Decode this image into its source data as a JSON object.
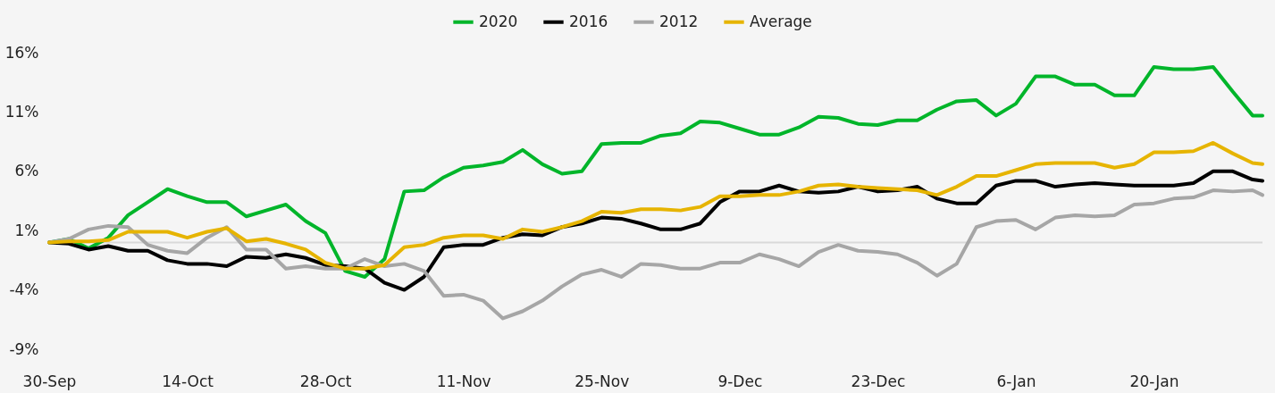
{
  "chart_data": {
    "type": "line",
    "x": [
      "2020-09-30",
      "2020-10-02",
      "2020-10-04",
      "2020-10-06",
      "2020-10-08",
      "2020-10-10",
      "2020-10-12",
      "2020-10-14",
      "2020-10-16",
      "2020-10-18",
      "2020-10-20",
      "2020-10-22",
      "2020-10-24",
      "2020-10-26",
      "2020-10-28",
      "2020-10-30",
      "2020-11-01",
      "2020-11-03",
      "2020-11-05",
      "2020-11-07",
      "2020-11-09",
      "2020-11-11",
      "2020-11-13",
      "2020-11-15",
      "2020-11-17",
      "2020-11-19",
      "2020-11-21",
      "2020-11-23",
      "2020-11-25",
      "2020-11-27",
      "2020-11-29",
      "2020-12-01",
      "2020-12-03",
      "2020-12-05",
      "2020-12-07",
      "2020-12-09",
      "2020-12-11",
      "2020-12-13",
      "2020-12-15",
      "2020-12-17",
      "2020-12-19",
      "2020-12-21",
      "2020-12-23",
      "2020-12-25",
      "2020-12-27",
      "2020-12-29",
      "2020-12-31",
      "2021-01-02",
      "2021-01-04",
      "2021-01-06",
      "2021-01-08",
      "2021-01-10",
      "2021-01-12",
      "2021-01-14",
      "2021-01-16",
      "2021-01-18",
      "2021-01-20",
      "2021-01-22",
      "2021-01-24",
      "2021-01-26",
      "2021-01-28",
      "2021-01-30",
      "2021-01-31"
    ],
    "series": [
      {
        "name": "2020",
        "color": "#00b52a",
        "values": [
          0,
          0.3,
          -0.5,
          0.4,
          2.3,
          3.4,
          4.5,
          3.9,
          3.4,
          3.4,
          2.2,
          2.7,
          3.2,
          1.8,
          0.8,
          -2.4,
          -2.9,
          -1.4,
          4.3,
          4.4,
          5.5,
          6.3,
          6.5,
          6.8,
          7.8,
          6.6,
          5.8,
          6.0,
          8.3,
          8.4,
          8.4,
          9.0,
          9.2,
          10.2,
          10.1,
          9.6,
          9.1,
          9.1,
          9.7,
          10.6,
          10.5,
          10.0,
          9.9,
          10.3,
          10.3,
          11.2,
          11.9,
          12.0,
          10.7,
          11.7,
          14.0,
          14.0,
          13.3,
          13.3,
          12.4,
          12.4,
          14.8,
          14.6,
          14.6,
          14.8,
          12.7,
          10.7,
          10.7
        ]
      },
      {
        "name": "2016",
        "color": "#000000",
        "values": [
          0,
          -0.1,
          -0.6,
          -0.3,
          -0.7,
          -0.7,
          -1.5,
          -1.8,
          -1.8,
          -2.0,
          -1.2,
          -1.3,
          -1.0,
          -1.3,
          -1.9,
          -2.0,
          -2.2,
          -3.4,
          -4.0,
          -2.9,
          -0.4,
          -0.2,
          -0.2,
          0.4,
          0.7,
          0.6,
          1.3,
          1.6,
          2.1,
          2.0,
          1.6,
          1.1,
          1.1,
          1.6,
          3.4,
          4.3,
          4.3,
          4.8,
          4.3,
          4.2,
          4.3,
          4.7,
          4.3,
          4.4,
          4.7,
          3.7,
          3.3,
          3.3,
          4.8,
          5.2,
          5.2,
          4.7,
          4.9,
          5.0,
          4.9,
          4.8,
          4.8,
          4.8,
          5.0,
          6.0,
          6.0,
          5.3,
          5.2
        ]
      },
      {
        "name": "2012",
        "color": "#a6a6a6",
        "values": [
          0,
          0.3,
          1.1,
          1.4,
          1.3,
          -0.2,
          -0.7,
          -0.9,
          0.4,
          1.3,
          -0.6,
          -0.6,
          -2.2,
          -2.0,
          -2.2,
          -2.2,
          -1.4,
          -2.0,
          -1.8,
          -2.4,
          -4.5,
          -4.4,
          -4.9,
          -6.4,
          -5.8,
          -4.9,
          -3.7,
          -2.7,
          -2.3,
          -2.9,
          -1.8,
          -1.9,
          -2.2,
          -2.2,
          -1.7,
          -1.7,
          -1.0,
          -1.4,
          -2.0,
          -0.8,
          -0.2,
          -0.7,
          -0.8,
          -1.0,
          -1.7,
          -2.8,
          -1.8,
          1.3,
          1.8,
          1.9,
          1.1,
          2.1,
          2.3,
          2.2,
          2.3,
          3.2,
          3.3,
          3.7,
          3.8,
          4.4,
          4.3,
          4.4,
          4.0
        ]
      },
      {
        "name": "Average",
        "color": "#e6b400",
        "values": [
          0,
          0.1,
          0.1,
          0.2,
          0.9,
          0.9,
          0.9,
          0.4,
          0.9,
          1.2,
          0.1,
          0.3,
          -0.1,
          -0.6,
          -1.7,
          -2.2,
          -2.2,
          -1.9,
          -0.4,
          -0.2,
          0.4,
          0.6,
          0.6,
          0.3,
          1.1,
          0.9,
          1.3,
          1.8,
          2.6,
          2.5,
          2.8,
          2.8,
          2.7,
          3.0,
          3.9,
          3.9,
          4.0,
          4.0,
          4.3,
          4.8,
          4.9,
          4.7,
          4.6,
          4.5,
          4.4,
          4.0,
          4.7,
          5.6,
          5.6,
          6.1,
          6.6,
          6.7,
          6.7,
          6.7,
          6.3,
          6.6,
          7.6,
          7.6,
          7.7,
          8.4,
          7.5,
          6.7,
          6.6
        ]
      }
    ],
    "xlim": [
      "2020-09-30",
      "2021-01-31"
    ],
    "xticks": [
      {
        "value": "2020-09-30",
        "label": "30-Sep"
      },
      {
        "value": "2020-10-14",
        "label": "14-Oct"
      },
      {
        "value": "2020-10-28",
        "label": "28-Oct"
      },
      {
        "value": "2020-11-11",
        "label": "11-Nov"
      },
      {
        "value": "2020-11-25",
        "label": "25-Nov"
      },
      {
        "value": "2020-12-09",
        "label": "9-Dec"
      },
      {
        "value": "2020-12-23",
        "label": "23-Dec"
      },
      {
        "value": "2021-01-06",
        "label": "6-Jan"
      },
      {
        "value": "2021-01-20",
        "label": "20-Jan"
      }
    ],
    "ylim": [
      -9,
      16
    ],
    "yticks": [
      {
        "value": -9,
        "label": "-9%"
      },
      {
        "value": -4,
        "label": "-4%"
      },
      {
        "value": 1,
        "label": "1%"
      },
      {
        "value": 6,
        "label": "6%"
      },
      {
        "value": 11,
        "label": "11%"
      },
      {
        "value": 16,
        "label": "16%"
      }
    ],
    "ref_lines": [
      {
        "axis": "y",
        "value": 0,
        "label": null,
        "color": "#d9d9d9"
      }
    ],
    "grid": false,
    "legend": "top",
    "marker": "none",
    "line_style": "solid"
  }
}
